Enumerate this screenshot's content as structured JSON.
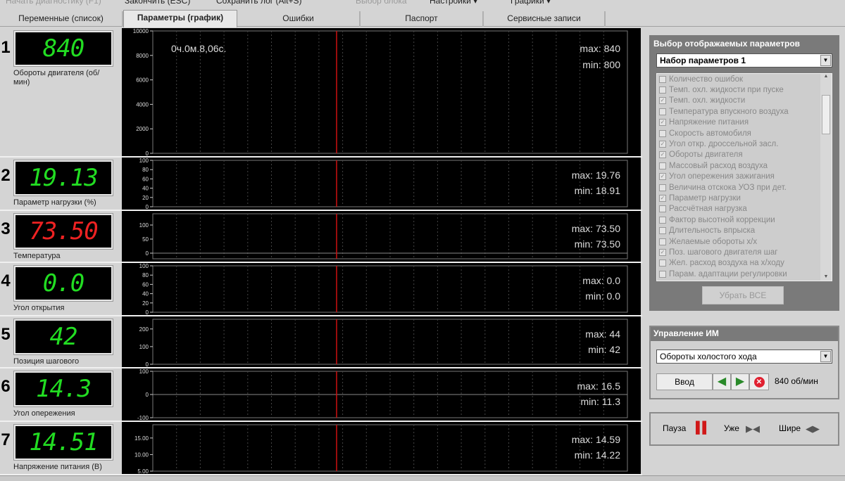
{
  "menu": [
    {
      "label": "Начать диагностику (F1)",
      "enabled": false
    },
    {
      "label": "Закончить (ESC)",
      "enabled": true
    },
    {
      "label": "Сохранить лог (Alt+S)",
      "enabled": true
    },
    {
      "label": "Выбор блока",
      "enabled": false
    },
    {
      "label": "Настройки ▾",
      "enabled": true
    },
    {
      "label": "Графики ▾",
      "enabled": true
    }
  ],
  "tabs": [
    {
      "label": "Переменные (список)",
      "active": false
    },
    {
      "label": "Параметры (график)",
      "active": true
    },
    {
      "label": "Ошибки",
      "active": false
    },
    {
      "label": "Паспорт",
      "active": false
    },
    {
      "label": "Сервисные записи",
      "active": false
    }
  ],
  "chart_data": [
    {
      "type": "line",
      "index": "1",
      "value": "840",
      "value_color": "#22dd22",
      "label": "Обороты двигателя (об/мин)",
      "ylim": [
        0,
        10000
      ],
      "ticks": [
        "0",
        "2000",
        "4000",
        "6000",
        "8000",
        "10000"
      ],
      "max": "max: 840",
      "min": "min: 800",
      "time": "0ч.0м.8,06с."
    },
    {
      "type": "line",
      "index": "2",
      "value": "19.13",
      "value_color": "#22dd22",
      "label": "Параметр нагрузки (%)",
      "ylim": [
        0,
        100
      ],
      "ticks": [
        "0",
        "20",
        "40",
        "60",
        "80",
        "100"
      ],
      "max": "max: 19.76",
      "min": "min: 18.91"
    },
    {
      "type": "line",
      "index": "3",
      "value": "73.50",
      "value_color": "#ee2222",
      "label": "Температура",
      "ylim": [
        -20,
        140
      ],
      "ticks": [
        "0",
        "50",
        "100"
      ],
      "max": "max: 73.50",
      "min": "min: 73.50"
    },
    {
      "type": "line",
      "index": "4",
      "value": "0.0",
      "value_color": "#22dd22",
      "label": "Угол открытия",
      "ylim": [
        0,
        100
      ],
      "ticks": [
        "0",
        "20",
        "40",
        "60",
        "80",
        "100"
      ],
      "max": "max: 0.0",
      "min": "min: 0.0"
    },
    {
      "type": "line",
      "index": "5",
      "value": "42",
      "value_color": "#22dd22",
      "label": "Позиция шагового",
      "ylim": [
        0,
        255
      ],
      "ticks": [
        "0",
        "100",
        "200"
      ],
      "max": "max: 44",
      "min": "min: 42"
    },
    {
      "type": "line",
      "index": "6",
      "value": "14.3",
      "value_color": "#22dd22",
      "label": "Угол опережения",
      "ylim": [
        -100,
        100
      ],
      "ticks": [
        "-100",
        "0",
        "100"
      ],
      "max": "max: 16.5",
      "min": "min: 11.3"
    },
    {
      "type": "line",
      "index": "7",
      "value": "14.51",
      "value_color": "#22dd22",
      "label": "Напряжение питания (В)",
      "ylim": [
        5,
        19
      ],
      "ticks": [
        "5.00",
        "10.00",
        "15.00"
      ],
      "max": "max: 14.59",
      "min": "min: 14.22"
    }
  ],
  "params": {
    "title": "Выбор отображаемых параметров",
    "set": "Набор параметров 1",
    "items": [
      {
        "label": "Количество ошибок",
        "checked": false
      },
      {
        "label": "Темп. охл. жидкости при пуске",
        "checked": false
      },
      {
        "label": "Темп. охл. жидкости",
        "checked": true
      },
      {
        "label": "Температура впускного воздуха",
        "checked": false
      },
      {
        "label": "Напряжение питания",
        "checked": true
      },
      {
        "label": "Скорость автомобиля",
        "checked": false
      },
      {
        "label": "Угол откр. дроссельной засл.",
        "checked": true
      },
      {
        "label": "Обороты двигателя",
        "checked": true
      },
      {
        "label": "Массовый расход воздуха",
        "checked": false
      },
      {
        "label": "Угол опережения зажигания",
        "checked": true
      },
      {
        "label": "Величина отскока УОЗ при дет.",
        "checked": false
      },
      {
        "label": "Параметр нагрузки",
        "checked": true
      },
      {
        "label": "Рассчётная нагрузка",
        "checked": false
      },
      {
        "label": "Фактор высотной коррекции",
        "checked": false
      },
      {
        "label": "Длительность впрыска",
        "checked": false
      },
      {
        "label": "Желаемые обороты х/х",
        "checked": false
      },
      {
        "label": "Поз. шагового двигателя шаг",
        "checked": true
      },
      {
        "label": "Жел. расход воздуха на х/ходу",
        "checked": false
      },
      {
        "label": "Парам. адаптации регулировки",
        "checked": false
      }
    ],
    "remove_all": "Убрать ВСЕ"
  },
  "im": {
    "title": "Управление ИМ",
    "selected": "Обороты холостого хода",
    "enter": "Ввод",
    "readout": "840 об/мин"
  },
  "playback": {
    "pause": "Пауза",
    "narrow": "Уже",
    "wide": "Шире"
  }
}
